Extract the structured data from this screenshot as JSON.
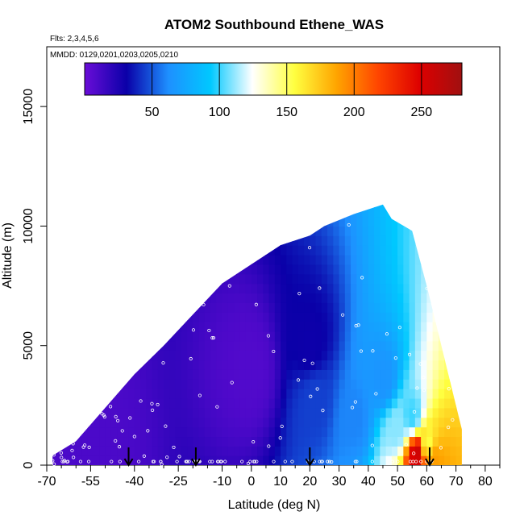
{
  "chart_data": {
    "type": "heatmap",
    "title": "ATOM2 Southbound Ethene_WAS",
    "subtitle": "Flts: 2,3,4,5,6",
    "annotation": "MMDD: 0129,0201,0203,0205,0210",
    "xlabel": "Latitude (deg N)",
    "ylabel": "Altitude (m)",
    "xlim": [
      -70,
      85
    ],
    "ylim": [
      0,
      17500
    ],
    "x_tick_labels": [
      "-70",
      "-55",
      "-40",
      "-25",
      "-10",
      "0",
      "10",
      "20",
      "30",
      "40",
      "50",
      "60",
      "70",
      "80"
    ],
    "x_tick_values": [
      -70,
      -55,
      -40,
      -25,
      -10,
      0,
      10,
      20,
      30,
      40,
      50,
      60,
      70,
      80
    ],
    "y_tick_labels": [
      "0",
      "5000",
      "10000",
      "15000"
    ],
    "y_tick_values": [
      0,
      5000,
      10000,
      15000
    ],
    "colorbar": {
      "range": [
        0,
        280
      ],
      "tick_labels": [
        "50",
        "100",
        "150",
        "200",
        "250"
      ],
      "tick_values": [
        50,
        100,
        150,
        200,
        250
      ],
      "colors": [
        "#6a0dd8",
        "#0a00a8",
        "#1e90ff",
        "#00c8ff",
        "#ffffff",
        "#ffff40",
        "#ffa500",
        "#ff4500",
        "#dd0000",
        "#a01010"
      ]
    },
    "arrows_at_latitude": [
      -42,
      -19,
      20,
      61
    ],
    "envelope_top": [
      {
        "lat": -68,
        "alt": 400
      },
      {
        "lat": -60,
        "alt": 1000
      },
      {
        "lat": -50,
        "alt": 2400
      },
      {
        "lat": -40,
        "alt": 3800
      },
      {
        "lat": -30,
        "alt": 5000
      },
      {
        "lat": -20,
        "alt": 6300
      },
      {
        "lat": -10,
        "alt": 7600
      },
      {
        "lat": 0,
        "alt": 8400
      },
      {
        "lat": 10,
        "alt": 9200
      },
      {
        "lat": 20,
        "alt": 9600
      },
      {
        "lat": 25,
        "alt": 10000
      },
      {
        "lat": 35,
        "alt": 10500
      },
      {
        "lat": 45,
        "alt": 10900
      },
      {
        "lat": 48,
        "alt": 10300
      },
      {
        "lat": 55,
        "alt": 9800
      },
      {
        "lat": 60,
        "alt": 7500
      },
      {
        "lat": 63,
        "alt": 6000
      },
      {
        "lat": 68,
        "alt": 3500
      },
      {
        "lat": 72,
        "alt": 1500
      }
    ],
    "field_samples": [
      {
        "lat": -55,
        "alt": 500,
        "value": 10
      },
      {
        "lat": 0,
        "alt": 4000,
        "value": 8
      },
      {
        "lat": 20,
        "alt": 5000,
        "value": 30
      },
      {
        "lat": 22,
        "alt": 2800,
        "value": 45
      },
      {
        "lat": 35,
        "alt": 2000,
        "value": 60
      },
      {
        "lat": 45,
        "alt": 3500,
        "value": 65
      },
      {
        "lat": 50,
        "alt": 1500,
        "value": 110
      },
      {
        "lat": 55,
        "alt": 2000,
        "value": 100
      },
      {
        "lat": 57,
        "alt": 500,
        "value": 260
      },
      {
        "lat": 60,
        "alt": 800,
        "value": 150
      },
      {
        "lat": 62,
        "alt": 300,
        "value": 190
      }
    ]
  }
}
